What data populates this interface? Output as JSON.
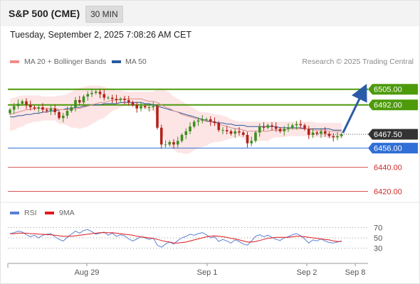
{
  "header": {
    "title": "S&P 500 (CME)",
    "timeframe": "30 MIN",
    "timestamp": "Tuesday, September 2, 2025 7:08:26 AM CET"
  },
  "legend": {
    "main": [
      {
        "name": "MA 20 + Bollinger Bands",
        "color": "#f08a8a"
      },
      {
        "name": "MA 50",
        "color": "#2a5aa0"
      }
    ],
    "credit": "Research © 2025 Trading Central",
    "rsi": [
      {
        "name": "RSI",
        "color": "#5b7fd6"
      },
      {
        "name": "9MA",
        "color": "#e01a1a"
      }
    ]
  },
  "colors": {
    "up": "#3d8f1e",
    "down": "#b3231a",
    "support": "#2f6fd6",
    "resistance": "#4d9a0b",
    "target": "#cf2a2a",
    "current": "#333333",
    "arrow": "#2b5aa8",
    "band": "#fde0e0"
  },
  "chart_data": [
    {
      "type": "candlestick",
      "title": "S&P 500 (CME)",
      "x_axis_labels": [
        "Aug 29",
        "Sep 1",
        "Sep 2",
        "Sep 8"
      ],
      "ylim": [
        6412,
        6522
      ],
      "price_labels": [
        "6505.00",
        "6492.00",
        "6467.50",
        "6456.00",
        "6440.00",
        "6420.00"
      ],
      "levels": [
        {
          "label": "6505.00",
          "value": 6505.0,
          "kind": "resistance"
        },
        {
          "label": "6492.00",
          "value": 6492.0,
          "kind": "resistance"
        },
        {
          "label": "6467.50",
          "value": 6467.5,
          "kind": "current"
        },
        {
          "label": "6456.00",
          "value": 6456.0,
          "kind": "support"
        },
        {
          "label": "6440.00",
          "value": 6440.0,
          "kind": "target"
        },
        {
          "label": "6420.00",
          "value": 6420.0,
          "kind": "target"
        }
      ],
      "closes": [
        6488,
        6491,
        6493,
        6495,
        6492,
        6490,
        6489,
        6490,
        6488,
        6487,
        6489,
        6486,
        6481,
        6483,
        6487,
        6490,
        6496,
        6494,
        6499,
        6501,
        6502,
        6503,
        6501,
        6498,
        6498,
        6497,
        6496,
        6497,
        6496,
        6494,
        6492,
        6489,
        6491,
        6490,
        6490,
        6491,
        6473,
        6459,
        6459,
        6461,
        6459,
        6462,
        6467,
        6470,
        6474,
        6478,
        6479,
        6480,
        6480,
        6478,
        6477,
        6471,
        6471,
        6470,
        6468,
        6470,
        6469,
        6467,
        6460,
        6462,
        6469,
        6474,
        6473,
        6475,
        6474,
        6472,
        6470,
        6472,
        6473,
        6475,
        6476,
        6475,
        6472,
        6467,
        6469,
        6468,
        6470,
        6468,
        6466,
        6465,
        6466,
        6467.5
      ],
      "ma20": [
        6484,
        6485,
        6486,
        6487,
        6488,
        6488,
        6489,
        6489,
        6489,
        6489,
        6489,
        6489,
        6488,
        6488,
        6488,
        6488,
        6489,
        6489,
        6490,
        6491,
        6492,
        6493,
        6494,
        6494,
        6495,
        6496,
        6496,
        6497,
        6497,
        6497,
        6497,
        6497,
        6497,
        6496,
        6495,
        6495,
        6494,
        6492,
        6490,
        6489,
        6487,
        6486,
        6484,
        6483,
        6482,
        6481,
        6480,
        6479,
        6478,
        6478,
        6477,
        6476,
        6475,
        6474,
        6473,
        6472,
        6472,
        6471,
        6470,
        6470,
        6470,
        6470,
        6470,
        6470,
        6471,
        6471,
        6471,
        6471,
        6472,
        6472,
        6472,
        6472,
        6472,
        6472,
        6471,
        6471,
        6471,
        6471,
        6470,
        6470,
        6470,
        6470
      ],
      "ma50": [
        6482,
        6482,
        6483,
        6483,
        6484,
        6484,
        6485,
        6485,
        6486,
        6486,
        6487,
        6487,
        6488,
        6488,
        6489,
        6489,
        6490,
        6490,
        6491,
        6491,
        6492,
        6492,
        6492,
        6493,
        6493,
        6493,
        6493,
        6494,
        6494,
        6494,
        6494,
        6494,
        6494,
        6493,
        6493,
        6492,
        6491,
        6490,
        6489,
        6488,
        6487,
        6486,
        6485,
        6484,
        6483,
        6482,
        6481,
        6480,
        6479,
        6478,
        6478,
        6477,
        6477,
        6476,
        6476,
        6475,
        6475,
        6475,
        6474,
        6474,
        6474,
        6474,
        6474,
        6474,
        6474,
        6474,
        6473,
        6473,
        6473,
        6473,
        6473,
        6473,
        6472,
        6472,
        6472,
        6472,
        6472,
        6472,
        6472,
        6471,
        6471,
        6471
      ],
      "band_upper": [
        6497,
        6498,
        6499,
        6500,
        6500,
        6500,
        6500,
        6500,
        6499,
        6499,
        6499,
        6499,
        6500,
        6500,
        6501,
        6503,
        6505,
        6506,
        6507,
        6508,
        6508,
        6508,
        6508,
        6507,
        6506,
        6505,
        6504,
        6504,
        6503,
        6503,
        6503,
        6503,
        6503,
        6503,
        6503,
        6503,
        6505,
        6505,
        6504,
        6502,
        6499,
        6497,
        6495,
        6493,
        6491,
        6489,
        6487,
        6486,
        6486,
        6485,
        6484,
        6484,
        6483,
        6482,
        6480,
        6479,
        6478,
        6478,
        6478,
        6478,
        6478,
        6478,
        6478,
        6478,
        6478,
        6478,
        6478,
        6478,
        6478,
        6478,
        6478,
        6478,
        6478,
        6478,
        6478,
        6477,
        6477,
        6477,
        6477,
        6477,
        6477,
        6477
      ],
      "band_lower": [
        6470,
        6471,
        6473,
        6474,
        6476,
        6477,
        6478,
        6478,
        6479,
        6479,
        6479,
        6479,
        6476,
        6476,
        6475,
        6473,
        6473,
        6472,
        6473,
        6474,
        6476,
        6478,
        6480,
        6481,
        6484,
        6487,
        6488,
        6490,
        6491,
        6491,
        6491,
        6491,
        6491,
        6489,
        6487,
        6487,
        6481,
        6468,
        6461,
        6456,
        6455,
        6452,
        6452,
        6451,
        6452,
        6454,
        6456,
        6457,
        6458,
        6460,
        6461,
        6461,
        6462,
        6463,
        6464,
        6465,
        6465,
        6464,
        6462,
        6462,
        6462,
        6462,
        6462,
        6462,
        6464,
        6465,
        6465,
        6465,
        6466,
        6466,
        6466,
        6466,
        6466,
        6466,
        6465,
        6465,
        6465,
        6465,
        6464,
        6464,
        6464,
        6464
      ]
    },
    {
      "type": "line",
      "title": "RSI",
      "ylim": [
        20,
        80
      ],
      "y_ticks": [
        70,
        50,
        30
      ],
      "series": [
        {
          "name": "RSI",
          "values": [
            58,
            60,
            63,
            61,
            56,
            52,
            55,
            50,
            55,
            57,
            58,
            52,
            47,
            44,
            51,
            57,
            63,
            59,
            64,
            66,
            62,
            57,
            59,
            61,
            55,
            59,
            53,
            56,
            54,
            48,
            44,
            48,
            52,
            50,
            47,
            50,
            36,
            32,
            38,
            42,
            38,
            45,
            50,
            53,
            57,
            55,
            58,
            60,
            56,
            50,
            52,
            43,
            47,
            44,
            40,
            46,
            43,
            38,
            36,
            44,
            53,
            56,
            52,
            55,
            51,
            47,
            45,
            50,
            52,
            56,
            58,
            54,
            48,
            40,
            46,
            44,
            48,
            44,
            41,
            40,
            42,
            44
          ]
        },
        {
          "name": "9MA",
          "values": [
            58,
            58,
            59,
            59,
            59,
            58,
            58,
            57,
            57,
            56,
            56,
            55,
            54,
            53,
            53,
            53,
            54,
            55,
            56,
            57,
            58,
            59,
            60,
            60,
            60,
            60,
            59,
            58,
            57,
            56,
            55,
            53,
            52,
            51,
            50,
            49,
            47,
            45,
            43,
            42,
            40,
            40,
            41,
            42,
            44,
            46,
            48,
            50,
            52,
            53,
            54,
            53,
            52,
            51,
            49,
            48,
            46,
            44,
            42,
            42,
            43,
            45,
            47,
            49,
            50,
            51,
            51,
            51,
            51,
            52,
            53,
            53,
            52,
            51,
            50,
            49,
            48,
            47,
            46,
            44,
            43,
            43
          ]
        }
      ]
    }
  ]
}
